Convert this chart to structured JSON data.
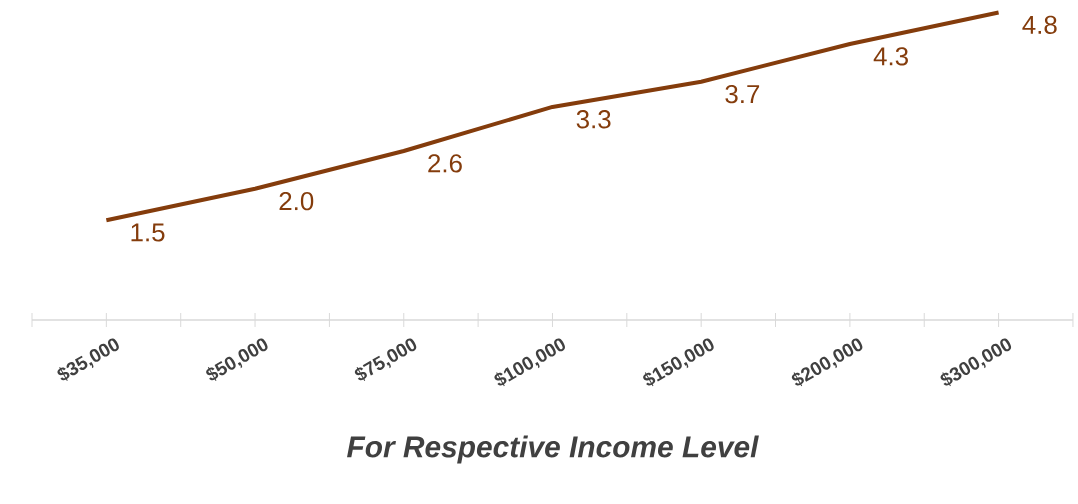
{
  "chart_data": {
    "type": "line",
    "xlabel": "For Respective Income Level",
    "categories": [
      "$35,000",
      "$50,000",
      "$75,000",
      "$100,000",
      "$150,000",
      "$200,000",
      "$300,000"
    ],
    "series": [
      {
        "color": "#843c0c",
        "values": [
          1.5,
          2.0,
          2.6,
          3.3,
          3.7,
          4.3,
          4.8
        ],
        "value_labels": [
          "1.5",
          "2.0",
          "2.6",
          "3.3",
          "3.7",
          "4.3",
          "4.8"
        ]
      }
    ],
    "grid": false,
    "marker": "none",
    "line_style": "solid",
    "tick_labels": "x"
  }
}
